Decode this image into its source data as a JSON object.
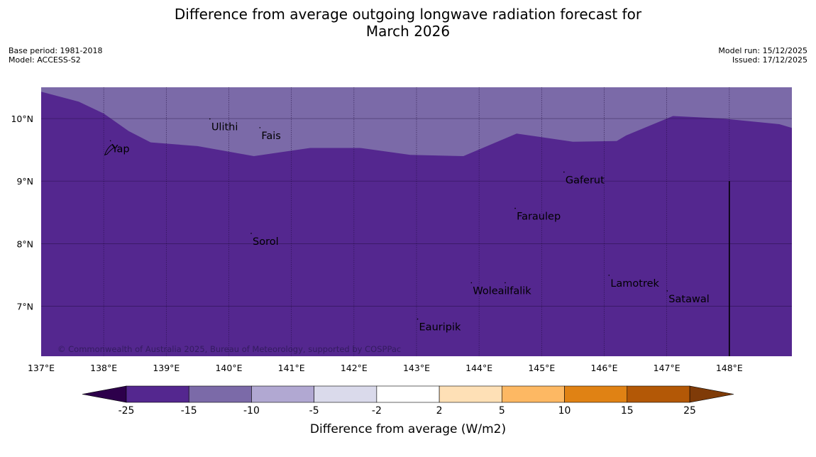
{
  "header": {
    "title_line1": "Difference from average outgoing longwave radiation forecast for",
    "title_line2": "March 2026",
    "base_period": "Base period: 1981-2018",
    "model": "Model: ACCESS-S2",
    "model_run": "Model run: 15/12/2025",
    "issued": "Issued: 17/12/2025"
  },
  "map": {
    "copyright": "© Commonwealth of Australia 2025, Bureau of Meteorology, supported by COSPPac",
    "lon_range": [
      137,
      149
    ],
    "lat_range": [
      6.2,
      10.5
    ],
    "lon_ticks": [
      137,
      138,
      139,
      140,
      141,
      142,
      143,
      144,
      145,
      146,
      147,
      148
    ],
    "lon_labels": [
      "137°E",
      "138°E",
      "139°E",
      "140°E",
      "141°E",
      "142°E",
      "143°E",
      "144°E",
      "145°E",
      "146°E",
      "147°E",
      "148°E"
    ],
    "lat_ticks": [
      7,
      8,
      9,
      10
    ],
    "lat_labels": [
      "7°N",
      "8°N",
      "9°N",
      "10°N"
    ],
    "boundary_lon": [
      137,
      137.6,
      138,
      138.4,
      138.75,
      139.5,
      140.4,
      141.3,
      142.1,
      142.9,
      143.75,
      144.6,
      145.5,
      146.2,
      146.35,
      147.1,
      147.9,
      148.8,
      149
    ],
    "boundary_lat": [
      10.43,
      10.27,
      10.08,
      9.8,
      9.62,
      9.56,
      9.4,
      9.53,
      9.53,
      9.42,
      9.4,
      9.76,
      9.63,
      9.64,
      9.73,
      10.04,
      10.0,
      9.91,
      9.85
    ],
    "locations": [
      {
        "name": "Yap",
        "lon": 138.13,
        "lat": 9.52
      },
      {
        "name": "Ulithi",
        "lon": 139.72,
        "lat": 9.87
      },
      {
        "name": "Fais",
        "lon": 140.52,
        "lat": 9.73
      },
      {
        "name": "Gaferut",
        "lon": 145.38,
        "lat": 9.02
      },
      {
        "name": "Faraulep",
        "lon": 144.6,
        "lat": 8.44
      },
      {
        "name": "Sorol",
        "lon": 140.38,
        "lat": 8.04
      },
      {
        "name": "Lamotrek",
        "lon": 146.1,
        "lat": 7.37
      },
      {
        "name": "Woleai",
        "lon": 143.9,
        "lat": 7.25
      },
      {
        "name": "Ifalik",
        "lon": 144.44,
        "lat": 7.25
      },
      {
        "name": "Satawal",
        "lon": 147.03,
        "lat": 7.12
      },
      {
        "name": "Eauripik",
        "lon": 143.04,
        "lat": 6.67
      }
    ],
    "meridian_line": {
      "lon": 148.0,
      "lat_top": 9.0
    }
  },
  "colorbar": {
    "label": "Difference from average (W/m2)",
    "tick_labels": [
      "-25",
      "-15",
      "-10",
      "-5",
      "-2",
      "2",
      "5",
      "10",
      "15",
      "25"
    ],
    "colors": [
      "#54278f",
      "#7b6aa8",
      "#b1a8d2",
      "#dadaeb",
      "#ffffff",
      "#fee0b6",
      "#fdb863",
      "#e08214",
      "#b35806"
    ],
    "extend_low_color": "#2d004b",
    "extend_high_color": "#7f3b08",
    "region_low_color": "#54278f",
    "region_high_color": "#7b6aa8"
  }
}
